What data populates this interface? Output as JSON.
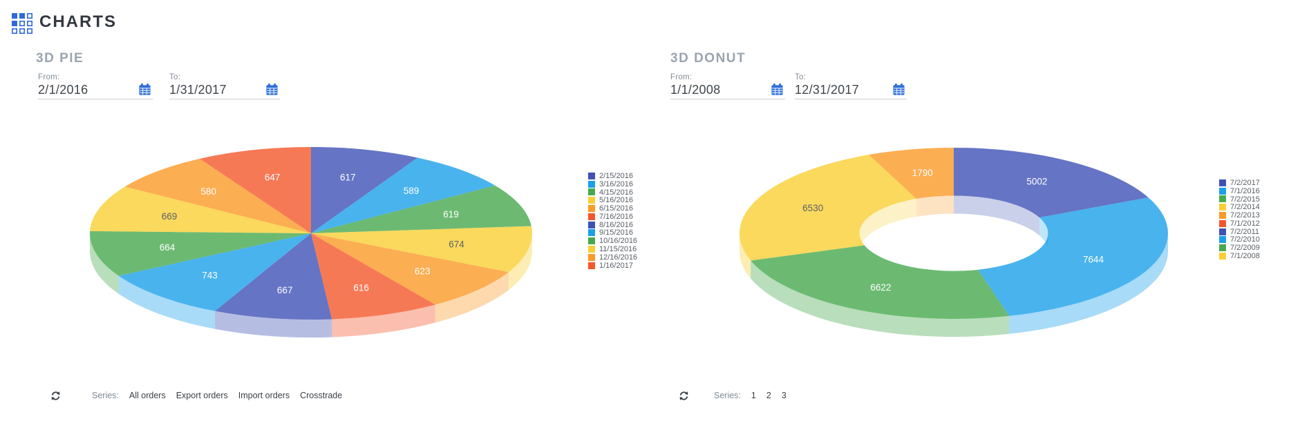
{
  "header": {
    "title": "CHARTS"
  },
  "accent_color": "#2e6fd8",
  "panels": [
    {
      "title": "3D PIE",
      "from_label": "From:",
      "from_value": "2/1/2016",
      "to_label": "To:",
      "to_value": "1/31/2017",
      "series_label": "Series:",
      "series_options": [
        "All orders",
        "Export orders",
        "Import orders",
        "Crosstrade"
      ]
    },
    {
      "title": "3D DONUT",
      "from_label": "From:",
      "from_value": "1/1/2008",
      "to_label": "To:",
      "to_value": "12/31/2017",
      "series_label": "Series:",
      "series_options": [
        "1",
        "2",
        "3"
      ]
    }
  ],
  "chart_data": [
    {
      "type": "pie",
      "variant": "3d-pie",
      "title": "3D PIE",
      "start_angle_deg": -90,
      "direction": "clockwise",
      "legend_position": "right",
      "palette": [
        "#3f51b5",
        "#1ba0ea",
        "#47a94f",
        "#f9cf35",
        "#fb9a27",
        "#f4572c"
      ],
      "legend_categories": [
        "2/15/2016",
        "3/16/2016",
        "4/15/2016",
        "5/16/2016",
        "6/15/2016",
        "7/16/2016",
        "8/16/2016",
        "9/15/2016",
        "10/16/2016",
        "11/15/2016",
        "12/16/2016",
        "1/16/2017"
      ],
      "slice_categories": [
        "2/15/2016",
        "3/16/2016",
        "4/15/2016",
        "5/16/2016",
        "6/15/2016",
        "7/16/2016",
        "8/16/2016",
        "9/15/2016",
        "10/16/2016",
        "11/15/2016",
        "12/16/2016",
        "1/16/2017"
      ],
      "values": [
        617,
        589,
        619,
        674,
        623,
        616,
        667,
        743,
        664,
        669,
        580,
        647
      ]
    },
    {
      "type": "pie",
      "variant": "3d-donut",
      "title": "3D DONUT",
      "start_angle_deg": -90,
      "direction": "clockwise",
      "legend_position": "right",
      "palette": [
        "#3f51b5",
        "#1ba0ea",
        "#47a94f",
        "#f9cf35",
        "#fb9a27",
        "#f4572c"
      ],
      "legend_categories": [
        "7/2/2017",
        "7/1/2016",
        "7/2/2015",
        "7/2/2014",
        "7/2/2013",
        "7/1/2012",
        "7/2/2011",
        "7/2/2010",
        "7/2/2009",
        "7/1/2008"
      ],
      "slice_categories": [
        "7/2/2017",
        "7/1/2016",
        "7/2/2015",
        "7/2/2014",
        "7/2/2013"
      ],
      "values": [
        5002,
        7644,
        6622,
        6530,
        1790
      ]
    }
  ]
}
